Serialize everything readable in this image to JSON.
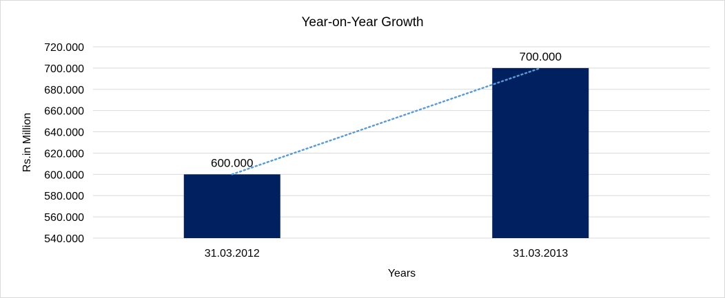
{
  "chart_data": {
    "type": "bar",
    "title": "Year-on-Year Growth",
    "xlabel": "Years",
    "ylabel": "Rs.in Million",
    "categories": [
      "31.03.2012",
      "31.03.2013"
    ],
    "values": [
      600,
      700
    ],
    "data_labels": [
      "600.000",
      "700.000"
    ],
    "ylim": [
      540,
      720
    ],
    "yticks": [
      "540.000",
      "560.000",
      "580.000",
      "600.000",
      "620.000",
      "640.000",
      "660.000",
      "680.000",
      "700.000",
      "720.000"
    ],
    "ytick_values": [
      540,
      560,
      580,
      600,
      620,
      640,
      660,
      680,
      700,
      720
    ],
    "grid": true,
    "trendline": {
      "type": "linear",
      "style": "dotted"
    },
    "colors": {
      "bar": "#002060",
      "trendline": "#5b9bd5",
      "grid": "#d9d9d9"
    }
  }
}
